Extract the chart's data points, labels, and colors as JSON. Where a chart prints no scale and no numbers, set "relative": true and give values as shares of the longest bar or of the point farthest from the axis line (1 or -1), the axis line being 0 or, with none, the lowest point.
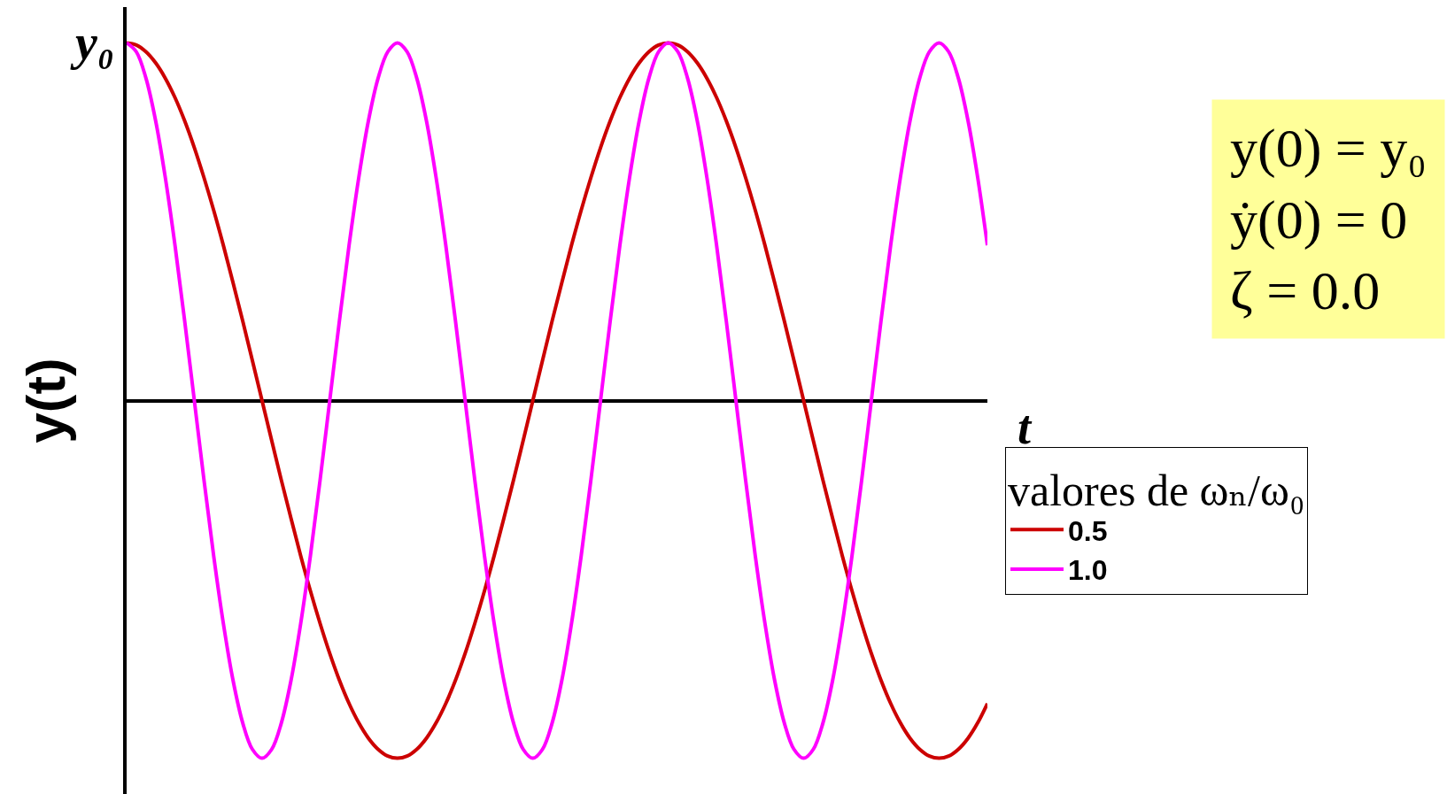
{
  "chart_data": {
    "type": "line",
    "relative": true,
    "xlabel": "t",
    "ylabel": "y(t)",
    "legend_title": "valores de ωₙ/ω₀",
    "legend": "bottom right",
    "categories": [
      null,
      null,
      null,
      null,
      null,
      null,
      null,
      null,
      null,
      null,
      null,
      null,
      null,
      null,
      null,
      null,
      null,
      null,
      null,
      null,
      null,
      null,
      null,
      null,
      null,
      null,
      null,
      null,
      null,
      null,
      null,
      null,
      null,
      null,
      null,
      null,
      null,
      null,
      null,
      null,
      null,
      null,
      null,
      null,
      null,
      null,
      null,
      null,
      null,
      null,
      null,
      null,
      null,
      null,
      null,
      null,
      null,
      null,
      null,
      null,
      null,
      null,
      null,
      null,
      null,
      null,
      null,
      null,
      null,
      null,
      null,
      null,
      null,
      null,
      null,
      null,
      null,
      null,
      null,
      null,
      null,
      null,
      null,
      null,
      null,
      null,
      null,
      null,
      null,
      null
    ],
    "series": [
      {
        "name": "0.5",
        "color": "#cc0000",
        "values": [
          1,
          0.994,
          0.975,
          0.944,
          0.901,
          0.847,
          0.782,
          0.707,
          0.623,
          0.532,
          0.434,
          0.33,
          0.223,
          0.112,
          0,
          -0.112,
          -0.223,
          -0.33,
          -0.434,
          -0.532,
          -0.623,
          -0.707,
          -0.782,
          -0.847,
          -0.901,
          -0.944,
          -0.975,
          -0.994,
          -1,
          -0.994,
          -0.975,
          -0.944,
          -0.901,
          -0.847,
          -0.782,
          -0.707,
          -0.623,
          -0.532,
          -0.434,
          -0.33,
          -0.223,
          -0.112,
          0,
          0.112,
          0.223,
          0.33,
          0.434,
          0.532,
          0.623,
          0.707,
          0.782,
          0.847,
          0.901,
          0.944,
          0.975,
          0.994,
          1,
          0.994,
          0.975,
          0.944,
          0.901,
          0.847,
          0.782,
          0.707,
          0.623,
          0.532,
          0.434,
          0.33,
          0.223,
          0.112,
          0,
          -0.112,
          -0.223,
          -0.33,
          -0.434,
          -0.532,
          -0.623,
          -0.707,
          -0.782,
          -0.847,
          -0.901,
          -0.944,
          -0.975,
          -0.994,
          -1,
          -0.994,
          -0.975,
          -0.944,
          -0.901,
          -0.847
        ]
      },
      {
        "name": "1.0",
        "color": "#ff00ff",
        "values": [
          1,
          0.975,
          0.901,
          0.782,
          0.623,
          0.434,
          0.223,
          0,
          -0.223,
          -0.434,
          -0.623,
          -0.782,
          -0.901,
          -0.975,
          -1,
          -0.975,
          -0.901,
          -0.782,
          -0.623,
          -0.434,
          -0.223,
          0,
          0.223,
          0.434,
          0.623,
          0.782,
          0.901,
          0.975,
          1,
          0.975,
          0.901,
          0.782,
          0.623,
          0.434,
          0.223,
          0,
          -0.223,
          -0.434,
          -0.623,
          -0.782,
          -0.901,
          -0.975,
          -1,
          -0.975,
          -0.901,
          -0.782,
          -0.623,
          -0.434,
          -0.223,
          0,
          0.223,
          0.434,
          0.623,
          0.782,
          0.901,
          0.975,
          1,
          0.975,
          0.901,
          0.782,
          0.623,
          0.434,
          0.223,
          0,
          -0.223,
          -0.434,
          -0.623,
          -0.782,
          -0.901,
          -0.975,
          -1,
          -0.975,
          -0.901,
          -0.782,
          -0.623,
          -0.434,
          -0.223,
          0,
          0.223,
          0.434,
          0.623,
          0.782,
          0.901,
          0.975,
          1,
          0.975,
          0.901,
          0.782,
          0.623,
          0.434
        ]
      }
    ],
    "annotations": [
      "y₀",
      "y(0) = y₀",
      "ẏ(0) = 0",
      "ζ = 0.0"
    ]
  }
}
